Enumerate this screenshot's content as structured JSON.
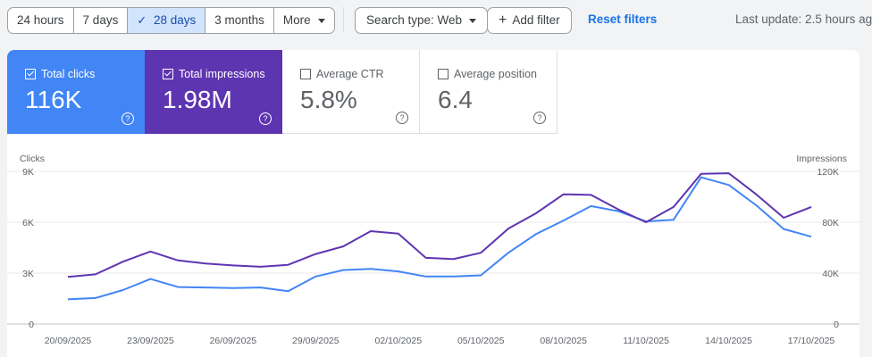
{
  "toolbar": {
    "ranges": [
      "24 hours",
      "7 days",
      "28 days",
      "3 months",
      "More"
    ],
    "selected_range": "28 days",
    "search_type": "Search type: Web",
    "add_filter": "Add filter",
    "reset_filters": "Reset filters",
    "last_update": "Last update: 2.5 hours ago"
  },
  "metrics": [
    {
      "label": "Total clicks",
      "value": "116K",
      "checked": true,
      "color": "#4285f4"
    },
    {
      "label": "Total impressions",
      "value": "1.98M",
      "checked": true,
      "color": "#5e35b1"
    },
    {
      "label": "Average CTR",
      "value": "5.8%",
      "checked": false,
      "color": "#ffffff"
    },
    {
      "label": "Average position",
      "value": "6.4",
      "checked": false,
      "color": "#ffffff"
    }
  ],
  "icons": {
    "help": "help-circle-icon",
    "check": "checkmark-icon",
    "caret": "caret-down-icon",
    "plus": "plus-icon"
  },
  "chart_data": {
    "type": "line",
    "ylabel": "Clicks",
    "y2label": "Impressions",
    "ylim": [
      0,
      9000
    ],
    "y2lim": [
      0,
      120000
    ],
    "y_ticks": [
      "0",
      "3K",
      "6K",
      "9K"
    ],
    "y2_ticks": [
      "0",
      "40K",
      "80K",
      "120K"
    ],
    "x": [
      "20/09/2025",
      "21/09/2025",
      "22/09/2025",
      "23/09/2025",
      "24/09/2025",
      "25/09/2025",
      "26/09/2025",
      "27/09/2025",
      "28/09/2025",
      "29/09/2025",
      "30/09/2025",
      "01/10/2025",
      "02/10/2025",
      "03/10/2025",
      "04/10/2025",
      "05/10/2025",
      "06/10/2025",
      "07/10/2025",
      "08/10/2025",
      "09/10/2025",
      "10/10/2025",
      "11/10/2025",
      "12/10/2025",
      "13/10/2025",
      "14/10/2025",
      "15/10/2025",
      "16/10/2025",
      "17/10/2025"
    ],
    "x_tick_labels": [
      "20/09/2025",
      "23/09/2025",
      "26/09/2025",
      "29/09/2025",
      "02/10/2025",
      "05/10/2025",
      "08/10/2025",
      "11/10/2025",
      "14/10/2025",
      "17/10/2025"
    ],
    "series": [
      {
        "name": "Clicks",
        "axis": "left",
        "color": "#4285f4",
        "values": [
          1450,
          1530,
          2000,
          2650,
          2180,
          2150,
          2120,
          2150,
          1930,
          2800,
          3180,
          3250,
          3100,
          2800,
          2800,
          2870,
          4200,
          5300,
          6100,
          6950,
          6650,
          6050,
          6150,
          8650,
          8200,
          7000,
          5600,
          5150
        ]
      },
      {
        "name": "Impressions",
        "axis": "right",
        "color": "#5e35b1",
        "values": [
          37000,
          39000,
          49000,
          57000,
          50000,
          47500,
          46000,
          45000,
          46500,
          55000,
          61000,
          73000,
          71000,
          52000,
          51000,
          56000,
          75000,
          87000,
          102000,
          101500,
          90000,
          80000,
          92000,
          118000,
          118500,
          102000,
          83500,
          92000
        ]
      }
    ],
    "grid": true,
    "legend": "none"
  }
}
